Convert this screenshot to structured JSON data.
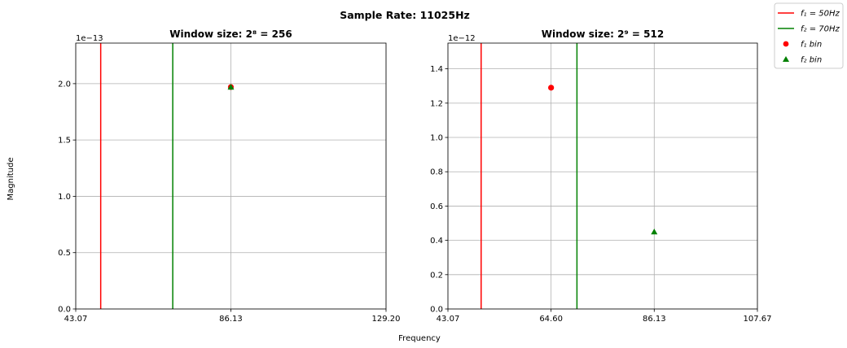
{
  "figure": {
    "suptitle": "Sample Rate: 11025Hz",
    "xlabel": "Frequency",
    "ylabel": "Magnitude"
  },
  "legend": {
    "placement": "upper-right-outside",
    "items": [
      {
        "label": "f₁ = 50Hz",
        "marker": "line",
        "color": "#ff0000"
      },
      {
        "label": "f₂ = 70Hz",
        "marker": "line",
        "color": "#008000"
      },
      {
        "label": "f₁ bin",
        "marker": "circle",
        "color": "#ff0000"
      },
      {
        "label": "f₂ bin",
        "marker": "triangle",
        "color": "#008000"
      }
    ]
  },
  "chart_data": [
    {
      "type": "scatter",
      "title": "Window size: 2⁸ = 256",
      "y_scale_label": "1e−13",
      "xlim": [
        43.07,
        129.2
      ],
      "ylim": [
        0,
        2.36
      ],
      "xticks": [
        43.07,
        86.13,
        129.2
      ],
      "xtick_labels": [
        "43.07",
        "86.13",
        "129.20"
      ],
      "yticks": [
        0,
        0.5,
        1.0,
        1.5,
        2.0
      ],
      "ytick_labels": [
        "0.0",
        "0.5",
        "1.0",
        "1.5",
        "2.0"
      ],
      "grid": true,
      "vlines": [
        {
          "name": "f₁ = 50Hz",
          "x": 50,
          "color": "#ff0000"
        },
        {
          "name": "f₂ = 70Hz",
          "x": 70,
          "color": "#008000"
        }
      ],
      "points": [
        {
          "name": "f₁ bin",
          "x": 86.13,
          "y": 1.97,
          "marker": "circle",
          "color": "#ff0000"
        },
        {
          "name": "f₂ bin",
          "x": 86.13,
          "y": 1.97,
          "marker": "triangle",
          "color": "#008000"
        }
      ]
    },
    {
      "type": "scatter",
      "title": "Window size: 2⁹ = 512",
      "y_scale_label": "1e−12",
      "xlim": [
        43.07,
        107.67
      ],
      "ylim": [
        0,
        1.55
      ],
      "xticks": [
        43.07,
        64.6,
        86.13,
        107.67
      ],
      "xtick_labels": [
        "43.07",
        "64.60",
        "86.13",
        "107.67"
      ],
      "yticks": [
        0,
        0.2,
        0.4,
        0.6,
        0.8,
        1.0,
        1.2,
        1.4
      ],
      "ytick_labels": [
        "0.0",
        "0.2",
        "0.4",
        "0.6",
        "0.8",
        "1.0",
        "1.2",
        "1.4"
      ],
      "grid": true,
      "vlines": [
        {
          "name": "f₁ = 50Hz",
          "x": 50,
          "color": "#ff0000"
        },
        {
          "name": "f₂ = 70Hz",
          "x": 70,
          "color": "#008000"
        }
      ],
      "points": [
        {
          "name": "f₁ bin",
          "x": 64.6,
          "y": 1.29,
          "marker": "circle",
          "color": "#ff0000"
        },
        {
          "name": "f₂ bin",
          "x": 86.13,
          "y": 0.45,
          "marker": "triangle",
          "color": "#008000"
        }
      ]
    }
  ]
}
